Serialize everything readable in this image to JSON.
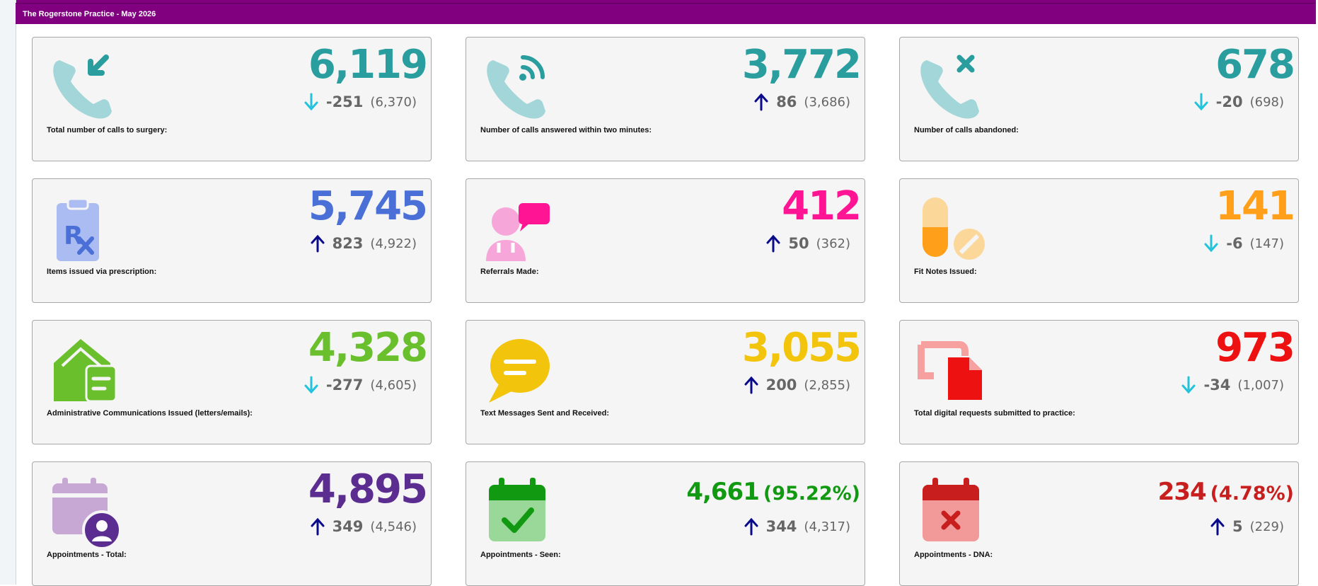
{
  "header": {
    "title": "The Rogerstone Practice - May 2026"
  },
  "colors": {
    "brand_purple": "#800080",
    "teal": "#2a9d9f",
    "blue": "#4a6fd6",
    "pink": "#ff1493",
    "orange": "#ff9f1a",
    "green": "#6abf2c",
    "yellow": "#f2c40c",
    "red": "#ee1111",
    "purple": "#5c2d91",
    "dark_green": "#119911",
    "dark_red": "#c81e1e",
    "arrow_down": "#23c3dc",
    "arrow_up": "#0a0a8a"
  },
  "cards": [
    {
      "value": "6,119",
      "delta": "-251",
      "previous": "(6,370)",
      "trend": "down",
      "label": "Total number of calls to surgery:",
      "icon": "phone-incoming-icon"
    },
    {
      "value": "3,772",
      "delta": "86",
      "previous": "(3,686)",
      "trend": "up",
      "label": "Number of calls answered within two minutes:",
      "icon": "phone-answered-icon"
    },
    {
      "value": "678",
      "delta": "-20",
      "previous": "(698)",
      "trend": "down",
      "label": "Number of calls abandoned:",
      "icon": "phone-missed-icon"
    },
    {
      "value": "5,745",
      "delta": "823",
      "previous": "(4,922)",
      "trend": "up",
      "label": "Items issued via prescription:",
      "icon": "prescription-icon"
    },
    {
      "value": "412",
      "delta": "50",
      "previous": "(362)",
      "trend": "up",
      "label": "Referrals Made:",
      "icon": "doctor-referral-icon"
    },
    {
      "value": "141",
      "delta": "-6",
      "previous": "(147)",
      "trend": "down",
      "label": "Fit Notes Issued:",
      "icon": "pills-icon"
    },
    {
      "value": "4,328",
      "delta": "-277",
      "previous": "(4,605)",
      "trend": "down",
      "label": "Administrative Communications Issued (letters/emails):",
      "icon": "house-letter-icon"
    },
    {
      "value": "3,055",
      "delta": "200",
      "previous": "(2,855)",
      "trend": "up",
      "label": "Text Messages Sent and Received:",
      "icon": "message-icon"
    },
    {
      "value": "973",
      "delta": "-34",
      "previous": "(1,007)",
      "trend": "down",
      "label": "Total digital requests submitted to practice:",
      "icon": "digital-request-icon"
    },
    {
      "value": "4,895",
      "delta": "349",
      "previous": "(4,546)",
      "trend": "up",
      "label": "Appointments - Total:",
      "icon": "calendar-user-icon"
    },
    {
      "value": "4,661",
      "value_pct": "(95.22%)",
      "delta": "344",
      "previous": "(4,317)",
      "trend": "up",
      "label": "Appointments - Seen:",
      "icon": "calendar-check-icon"
    },
    {
      "value": "234",
      "value_pct": "(4.78%)",
      "delta": "5",
      "previous": "(229)",
      "trend": "up",
      "label": "Appointments - DNA:",
      "icon": "calendar-x-icon"
    }
  ]
}
